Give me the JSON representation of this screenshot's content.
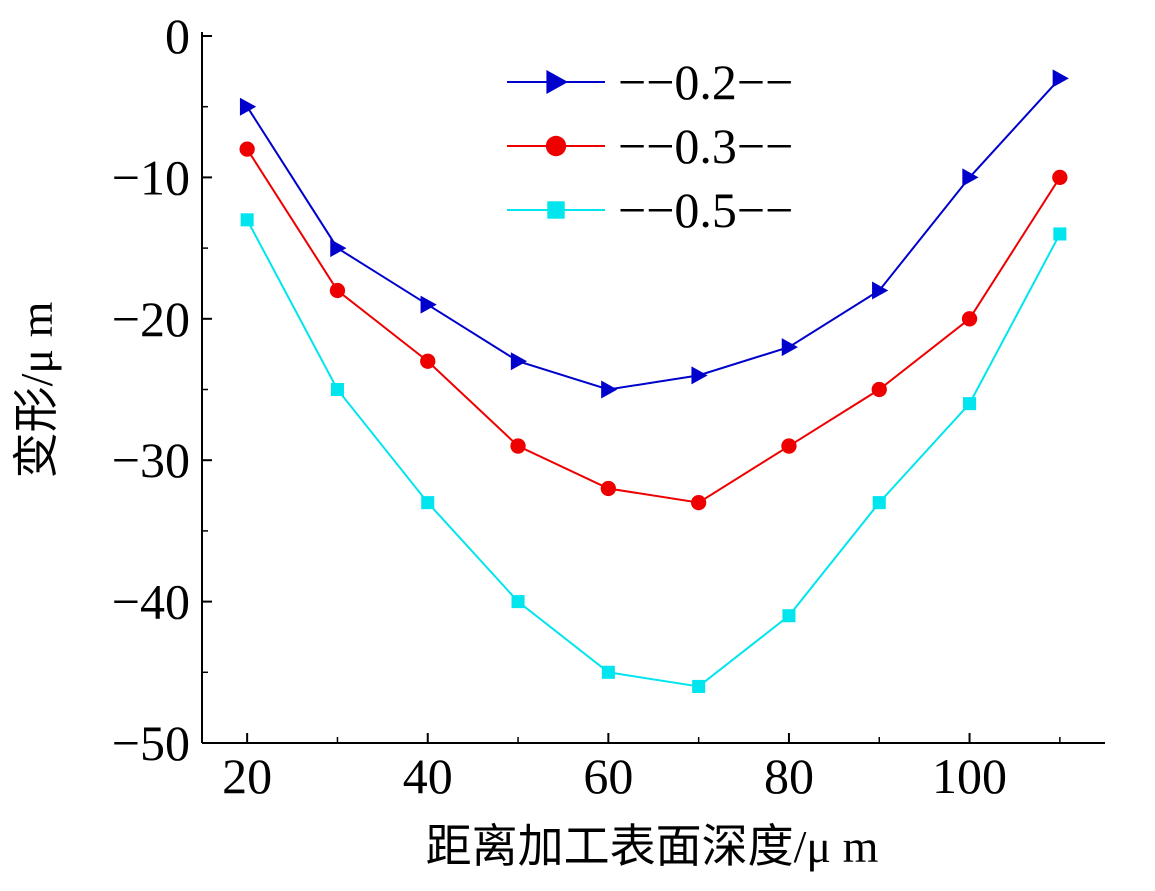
{
  "chart_data": {
    "type": "line",
    "xlabel": "距离加工表面深度/μ m",
    "ylabel": "变形/μ m",
    "x": [
      20,
      30,
      40,
      50,
      60,
      70,
      80,
      90,
      100,
      110
    ],
    "xlim": [
      15,
      115
    ],
    "ylim": [
      -50,
      0
    ],
    "xticks": [
      20,
      40,
      60,
      80,
      100
    ],
    "yticks": [
      0,
      -10,
      -20,
      -30,
      -40,
      -50
    ],
    "xtick_labels": [
      "20",
      "40",
      "60",
      "80",
      "100"
    ],
    "ytick_labels": [
      "0",
      "−10",
      "−20",
      "−30",
      "−40",
      "−50"
    ],
    "grid": false,
    "legend_position": "top-center",
    "series": [
      {
        "name": "−−0.2−−",
        "color": "#0000cc",
        "marker": "triangle-right",
        "values": [
          -5,
          -15,
          -19,
          -23,
          -25,
          -24,
          -22,
          -18,
          -10,
          -3
        ]
      },
      {
        "name": "−−0.3−−",
        "color": "#ee0000",
        "marker": "circle",
        "values": [
          -8,
          -18,
          -23,
          -29,
          -32,
          -33,
          -29,
          -25,
          -20,
          -10
        ]
      },
      {
        "name": "−−0.5−−",
        "color": "#00e5ee",
        "marker": "square",
        "values": [
          -13,
          -25,
          -33,
          -40,
          -45,
          -46,
          -41,
          -33,
          -26,
          -14
        ]
      }
    ]
  }
}
